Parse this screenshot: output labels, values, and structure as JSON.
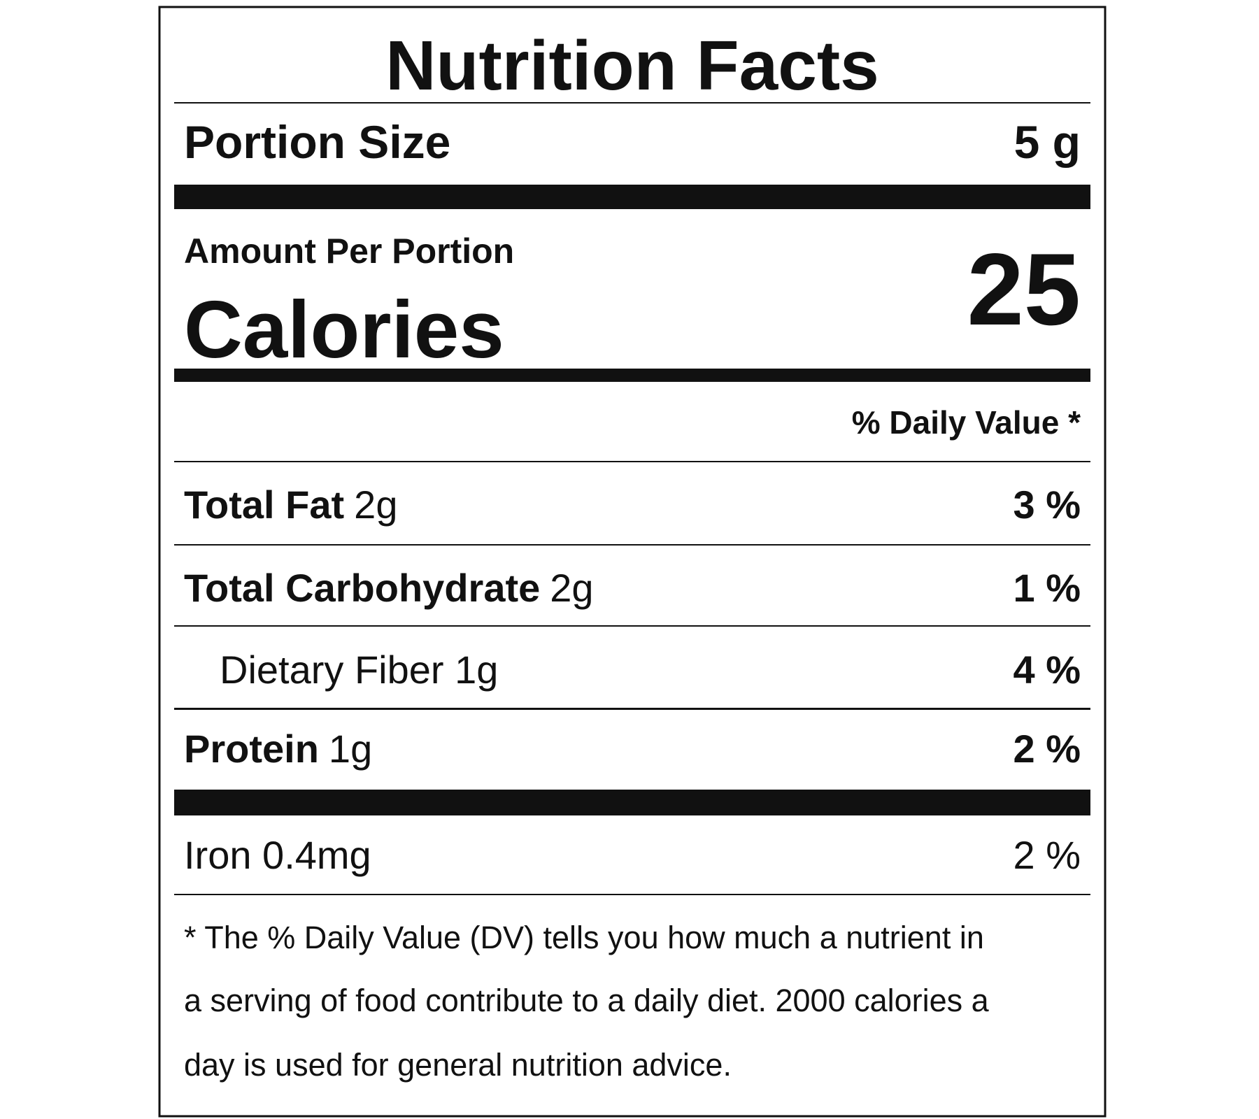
{
  "title": "Nutrition Facts",
  "portion": {
    "label": "Portion Size",
    "value": "5 g"
  },
  "amount_per_portion": "Amount Per Portion",
  "calories": {
    "label": "Calories",
    "value": "25"
  },
  "daily_value_header": "% Daily Value *",
  "rows": [
    {
      "name": "Total Fat",
      "amount": "2g",
      "percent": "3 %"
    },
    {
      "name": "Total Carbohydrate",
      "amount": "2g",
      "percent": "1 %"
    },
    {
      "name": "Dietary Fiber 1g",
      "amount": null,
      "percent": "4 %"
    },
    {
      "name": "Protein",
      "amount": "1g",
      "percent": "2 %"
    },
    {
      "name": "Iron 0.4mg",
      "amount": null,
      "percent": "2 %"
    }
  ],
  "footnote": [
    "* The % Daily Value (DV) tells you how much a nutrient in",
    "a serving of food contribute to a daily diet. 2000 calories a",
    "day is used for general nutrition advice."
  ]
}
